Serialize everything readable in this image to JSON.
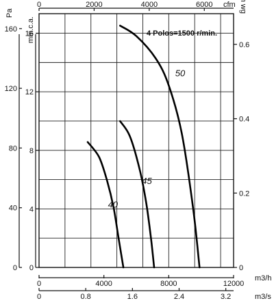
{
  "chart_data": {
    "type": "line",
    "annotation": "4 Polos=1500 r/min.",
    "axes": {
      "bottom_primary": {
        "unit": "m3/h",
        "range": [
          0,
          12000
        ],
        "ticks": [
          0,
          4000,
          8000,
          12000
        ]
      },
      "bottom_secondary": {
        "unit": "m3/s",
        "ticks": [
          0,
          0.8,
          1.6,
          2.4,
          3.2
        ],
        "tick_labels": [
          "0",
          "0.8",
          "1.6",
          "2.4",
          "3.2"
        ]
      },
      "top": {
        "unit": "cfm",
        "ticks": [
          0,
          2000,
          4000,
          6000
        ]
      },
      "left_outer": {
        "unit": "Pa",
        "range": [
          0,
          170
        ],
        "ticks": [
          0,
          40,
          80,
          120,
          160
        ]
      },
      "left_inner": {
        "unit": "mm.c.a.",
        "ticks": [
          0,
          4,
          8,
          12,
          16
        ]
      },
      "right": {
        "unit": "in wg",
        "ticks": [
          0,
          0.2,
          0.4,
          0.6
        ],
        "tick_labels": [
          "0",
          "0.2",
          "0.4",
          "0.6"
        ]
      }
    },
    "grid": true,
    "series": [
      {
        "name": "40",
        "x": [
          3000,
          3700,
          4200,
          4600,
          4900,
          5200
        ],
        "y": [
          84,
          74,
          58,
          40,
          20,
          0
        ]
      },
      {
        "name": "45",
        "x": [
          5000,
          5600,
          6200,
          6600,
          6900,
          7100
        ],
        "y": [
          98,
          88,
          66,
          44,
          20,
          0
        ]
      },
      {
        "name": "50",
        "x": [
          5000,
          6000,
          7200,
          8000,
          8800,
          9500,
          9900
        ],
        "y": [
          162,
          155,
          140,
          122,
          90,
          40,
          0
        ]
      }
    ]
  }
}
